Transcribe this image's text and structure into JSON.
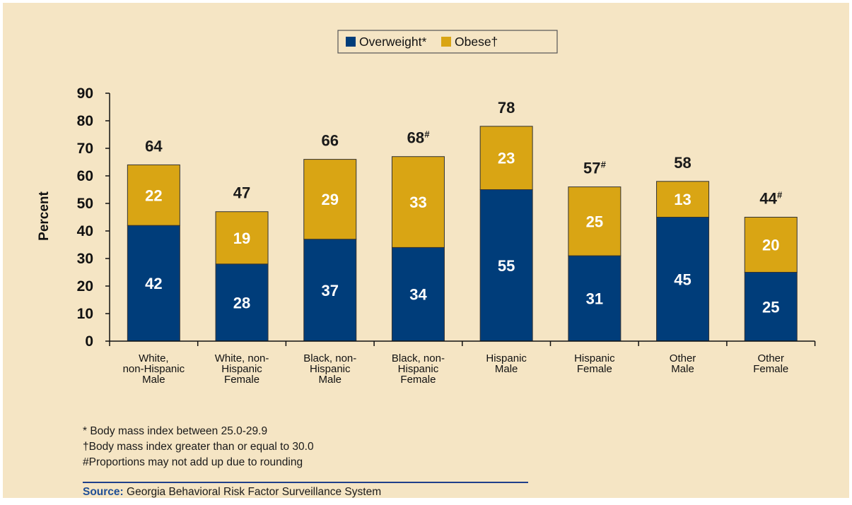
{
  "chart_data": {
    "type": "bar",
    "stacked": true,
    "categories": [
      "White, non-Hispanic Male",
      "White, non-Hispanic Female",
      "Black, non-Hispanic Male",
      "Black, non-Hispanic Female",
      "Hispanic Male",
      "Hispanic Female",
      "Other Male",
      "Other Female"
    ],
    "category_lines": [
      [
        "White,",
        "non-Hispanic",
        "Male"
      ],
      [
        "White, non-",
        "Hispanic",
        "Female"
      ],
      [
        "Black, non-",
        "Hispanic",
        "Male"
      ],
      [
        "Black, non-",
        "Hispanic",
        "Female"
      ],
      [
        "Hispanic",
        "Male"
      ],
      [
        "Hispanic",
        "Female"
      ],
      [
        "Other",
        "Male"
      ],
      [
        "Other",
        "Female"
      ]
    ],
    "series": [
      {
        "name": "Overweight*",
        "color": "#003d7a",
        "values": [
          42,
          28,
          37,
          34,
          55,
          31,
          45,
          25
        ]
      },
      {
        "name": "Obese†",
        "color": "#d9a514",
        "values": [
          22,
          19,
          29,
          33,
          23,
          25,
          13,
          20
        ]
      }
    ],
    "totals": [
      64,
      47,
      66,
      68,
      78,
      57,
      58,
      44
    ],
    "total_marks": [
      "",
      "",
      "",
      "#",
      "",
      "#",
      "",
      "#"
    ],
    "ylabel": "Percent",
    "ylim": [
      0,
      90
    ],
    "yticks": [
      0,
      10,
      20,
      30,
      40,
      50,
      60,
      70,
      80,
      90
    ],
    "grid": false,
    "legend_position": "top-center"
  },
  "notes": [
    "* Body mass index between 25.0-29.9",
    "†Body mass index greater than or equal to 30.0",
    "#Proportions may not add up due to rounding"
  ],
  "source": {
    "label": "Source:",
    "text": " Georgia Behavioral Risk Factor Surveillance System"
  }
}
